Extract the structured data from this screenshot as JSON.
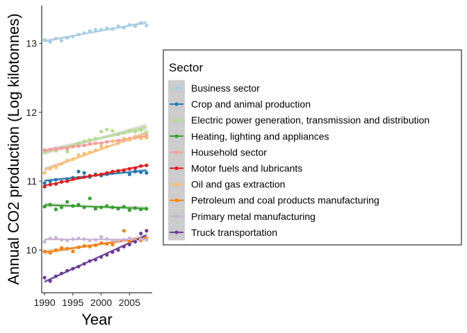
{
  "chart_data": {
    "type": "scatter",
    "xlabel": "Year",
    "ylabel": "Annual CO2 production (Log kilotonnes)",
    "xlim": [
      1989.5,
      2009.0
    ],
    "ylim": [
      9.38,
      13.55
    ],
    "x_ticks": [
      1990,
      1995,
      2000,
      2005
    ],
    "x_tick_labels": [
      "1990",
      "1995",
      "2000",
      "2005"
    ],
    "y_ticks": [
      10,
      11,
      12,
      13
    ],
    "y_tick_labels": [
      "10",
      "11",
      "12",
      "13"
    ],
    "grid": false,
    "trend": "linear fit with confidence band per series",
    "legend": {
      "title": "Sector",
      "placement": "right"
    },
    "x": [
      1990,
      1991,
      1992,
      1993,
      1994,
      1995,
      1996,
      1997,
      1998,
      1999,
      2000,
      2001,
      2002,
      2003,
      2004,
      2005,
      2006,
      2007,
      2008
    ],
    "series": [
      {
        "name": "Business sector",
        "color": "#a6cee3",
        "values": [
          13.05,
          13.02,
          13.07,
          13.04,
          13.08,
          13.1,
          13.13,
          13.15,
          13.18,
          13.2,
          13.2,
          13.22,
          13.21,
          13.25,
          13.23,
          13.27,
          13.25,
          13.3,
          13.26
        ]
      },
      {
        "name": "Crop and animal production",
        "color": "#1f78b4",
        "values": [
          10.97,
          11.0,
          11.02,
          10.99,
          11.03,
          11.05,
          11.14,
          11.12,
          11.06,
          11.1,
          11.08,
          11.1,
          11.12,
          11.14,
          11.15,
          11.1,
          11.14,
          11.13,
          11.12
        ]
      },
      {
        "name": "Electric power generation, transmission and distribution",
        "color": "#b2df8a",
        "values": [
          11.42,
          11.45,
          11.44,
          11.48,
          11.43,
          11.5,
          11.55,
          11.58,
          11.6,
          11.62,
          11.72,
          11.75,
          11.73,
          11.68,
          11.7,
          11.73,
          11.72,
          11.74,
          11.71
        ]
      },
      {
        "name": "Heating, lighting and appliances",
        "color": "#33a02c",
        "values": [
          10.63,
          10.66,
          10.59,
          10.62,
          10.7,
          10.64,
          10.66,
          10.62,
          10.75,
          10.6,
          10.62,
          10.64,
          10.62,
          10.6,
          10.63,
          10.58,
          10.61,
          10.59,
          10.6
        ]
      },
      {
        "name": "Household sector",
        "color": "#fb9a99",
        "values": [
          11.45,
          11.46,
          11.47,
          11.48,
          11.47,
          11.5,
          11.51,
          11.52,
          11.54,
          11.55,
          11.55,
          11.57,
          11.58,
          11.59,
          11.6,
          11.62,
          11.63,
          11.64,
          11.66
        ]
      },
      {
        "name": "Motor fuels and lubricants",
        "color": "#e31a1c",
        "values": [
          10.92,
          10.95,
          10.96,
          10.99,
          11.0,
          11.03,
          11.05,
          11.06,
          11.08,
          11.09,
          11.1,
          11.12,
          11.14,
          11.15,
          11.16,
          11.18,
          11.19,
          11.22,
          11.23
        ]
      },
      {
        "name": "Oil and gas extraction",
        "color": "#fdbf6f",
        "values": [
          11.12,
          11.18,
          11.2,
          11.25,
          11.3,
          11.32,
          11.38,
          11.4,
          11.42,
          11.45,
          11.5,
          11.5,
          11.58,
          11.55,
          11.62,
          11.6,
          11.65,
          11.62,
          11.63
        ]
      },
      {
        "name": "Petroleum and coal products manufacturing",
        "color": "#ff7f00",
        "values": [
          9.98,
          9.96,
          10.0,
          10.03,
          10.02,
          9.98,
          10.04,
          10.06,
          10.05,
          10.07,
          10.1,
          10.09,
          10.08,
          10.13,
          10.28,
          10.12,
          10.15,
          10.14,
          10.17
        ]
      },
      {
        "name": "Primary metal manufacturing",
        "color": "#cab2d6",
        "values": [
          10.12,
          10.17,
          10.18,
          10.15,
          10.14,
          10.16,
          10.17,
          10.16,
          10.14,
          10.15,
          10.19,
          10.16,
          10.14,
          10.13,
          10.15,
          10.17,
          10.14,
          10.16,
          10.15
        ]
      },
      {
        "name": "Truck transportation",
        "color": "#6a3d9a",
        "values": [
          9.6,
          9.55,
          9.62,
          9.66,
          9.7,
          9.73,
          9.76,
          9.8,
          9.84,
          9.86,
          9.9,
          9.93,
          9.97,
          10.0,
          10.05,
          10.08,
          10.12,
          10.24,
          10.28
        ]
      }
    ]
  }
}
